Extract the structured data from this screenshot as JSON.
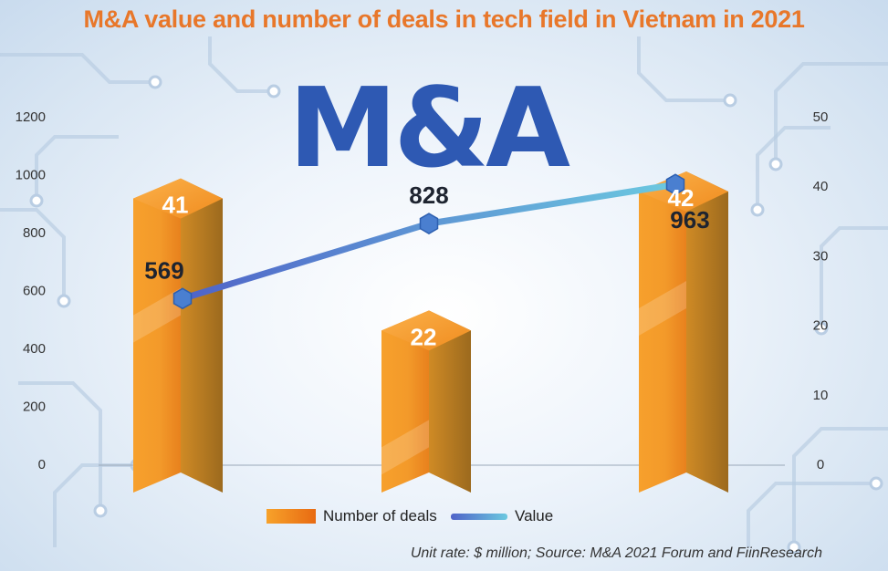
{
  "title": "M&A value and number of deals in tech field in Vietnam in 2021",
  "logo_text": "M&A",
  "source_note": "Unit rate: $ million; Source: M&A 2021 Forum and FiinResearch",
  "colors": {
    "bar": "#f39a2a",
    "bar_dark": "#b9761e",
    "line": "#5a8fd6",
    "title": "#e8772a",
    "logo": "#2e59b3"
  },
  "legend": {
    "bar_label": "Number of deals",
    "line_label": "Value"
  },
  "chart_data": {
    "type": "bar",
    "categories": [
      "",
      "",
      ""
    ],
    "series": [
      {
        "name": "Number of deals",
        "type": "bar",
        "axis": "right",
        "values": [
          41,
          22,
          42
        ]
      },
      {
        "name": "Value",
        "type": "line",
        "axis": "left",
        "values": [
          569,
          828,
          963
        ]
      }
    ],
    "left_axis": {
      "ylim": [
        0,
        1200
      ],
      "ticks": [
        0,
        200,
        400,
        600,
        800,
        1000,
        1200
      ]
    },
    "right_axis": {
      "ylim": [
        0,
        50
      ],
      "ticks": [
        0,
        10,
        20,
        30,
        40,
        50
      ]
    },
    "grid": false,
    "legend_position": "bottom"
  }
}
